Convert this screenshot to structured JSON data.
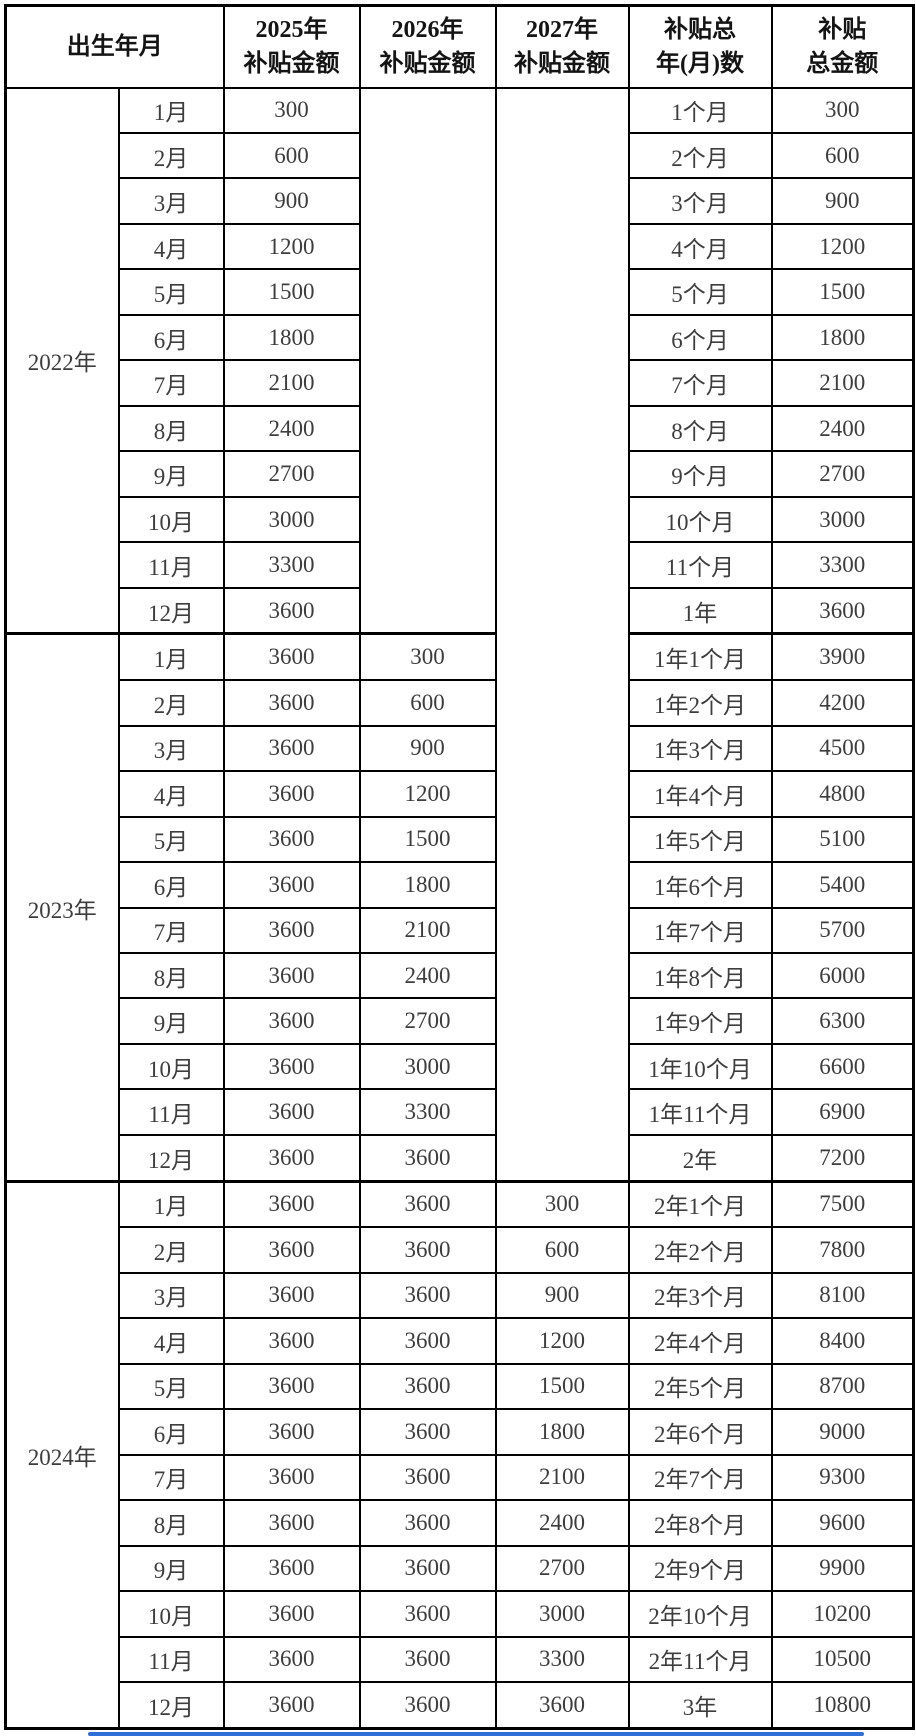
{
  "chart_data": {
    "type": "table",
    "header": {
      "birth_label": "出生年月",
      "col_labels": [
        {
          "line1": "2025年",
          "line2": "补贴金额"
        },
        {
          "line1": "2026年",
          "line2": "补贴金额"
        },
        {
          "line1": "2027年",
          "line2": "补贴金额"
        },
        {
          "line1": "补贴总",
          "line2": "年(月)数"
        },
        {
          "line1": "补贴",
          "line2": "总金额"
        }
      ]
    },
    "sections": [
      {
        "year": "2022年",
        "months": [
          "1月",
          "2月",
          "3月",
          "4月",
          "5月",
          "6月",
          "7月",
          "8月",
          "9月",
          "10月",
          "11月",
          "12月"
        ],
        "y2025": [
          "300",
          "600",
          "900",
          "1200",
          "1500",
          "1800",
          "2100",
          "2400",
          "2700",
          "3000",
          "3300",
          "3600"
        ],
        "y2026": null,
        "y2027": null,
        "period": [
          "1个月",
          "2个月",
          "3个月",
          "4个月",
          "5个月",
          "6个月",
          "7个月",
          "8个月",
          "9个月",
          "10个月",
          "11个月",
          "1年"
        ],
        "total": [
          "300",
          "600",
          "900",
          "1200",
          "1500",
          "1800",
          "2100",
          "2400",
          "2700",
          "3000",
          "3300",
          "3600"
        ]
      },
      {
        "year": "2023年",
        "months": [
          "1月",
          "2月",
          "3月",
          "4月",
          "5月",
          "6月",
          "7月",
          "8月",
          "9月",
          "10月",
          "11月",
          "12月"
        ],
        "y2025": [
          "3600",
          "3600",
          "3600",
          "3600",
          "3600",
          "3600",
          "3600",
          "3600",
          "3600",
          "3600",
          "3600",
          "3600"
        ],
        "y2026": [
          "300",
          "600",
          "900",
          "1200",
          "1500",
          "1800",
          "2100",
          "2400",
          "2700",
          "3000",
          "3300",
          "3600"
        ],
        "y2027": null,
        "period": [
          "1年1个月",
          "1年2个月",
          "1年3个月",
          "1年4个月",
          "1年5个月",
          "1年6个月",
          "1年7个月",
          "1年8个月",
          "1年9个月",
          "1年10个月",
          "1年11个月",
          "2年"
        ],
        "total": [
          "3900",
          "4200",
          "4500",
          "4800",
          "5100",
          "5400",
          "5700",
          "6000",
          "6300",
          "6600",
          "6900",
          "7200"
        ]
      },
      {
        "year": "2024年",
        "months": [
          "1月",
          "2月",
          "3月",
          "4月",
          "5月",
          "6月",
          "7月",
          "8月",
          "9月",
          "10月",
          "11月",
          "12月"
        ],
        "y2025": [
          "3600",
          "3600",
          "3600",
          "3600",
          "3600",
          "3600",
          "3600",
          "3600",
          "3600",
          "3600",
          "3600",
          "3600"
        ],
        "y2026": [
          "3600",
          "3600",
          "3600",
          "3600",
          "3600",
          "3600",
          "3600",
          "3600",
          "3600",
          "3600",
          "3600",
          "3600"
        ],
        "y2027": [
          "300",
          "600",
          "900",
          "1200",
          "1500",
          "1800",
          "2100",
          "2400",
          "2700",
          "3000",
          "3300",
          "3600"
        ],
        "period": [
          "2年1个月",
          "2年2个月",
          "2年3个月",
          "2年4个月",
          "2年5个月",
          "2年6个月",
          "2年7个月",
          "2年8个月",
          "2年9个月",
          "2年10个月",
          "2年11个月",
          "3年"
        ],
        "total": [
          "7500",
          "7800",
          "8100",
          "8400",
          "8700",
          "9000",
          "9300",
          "9600",
          "9900",
          "10200",
          "10500",
          "10800"
        ]
      }
    ]
  },
  "style": {
    "border_color": "#000000",
    "header_text_color": "#141414",
    "body_text_color": "#3d3d3d",
    "background": "#ffffff",
    "accent_line_color": "#2e6fd8"
  }
}
